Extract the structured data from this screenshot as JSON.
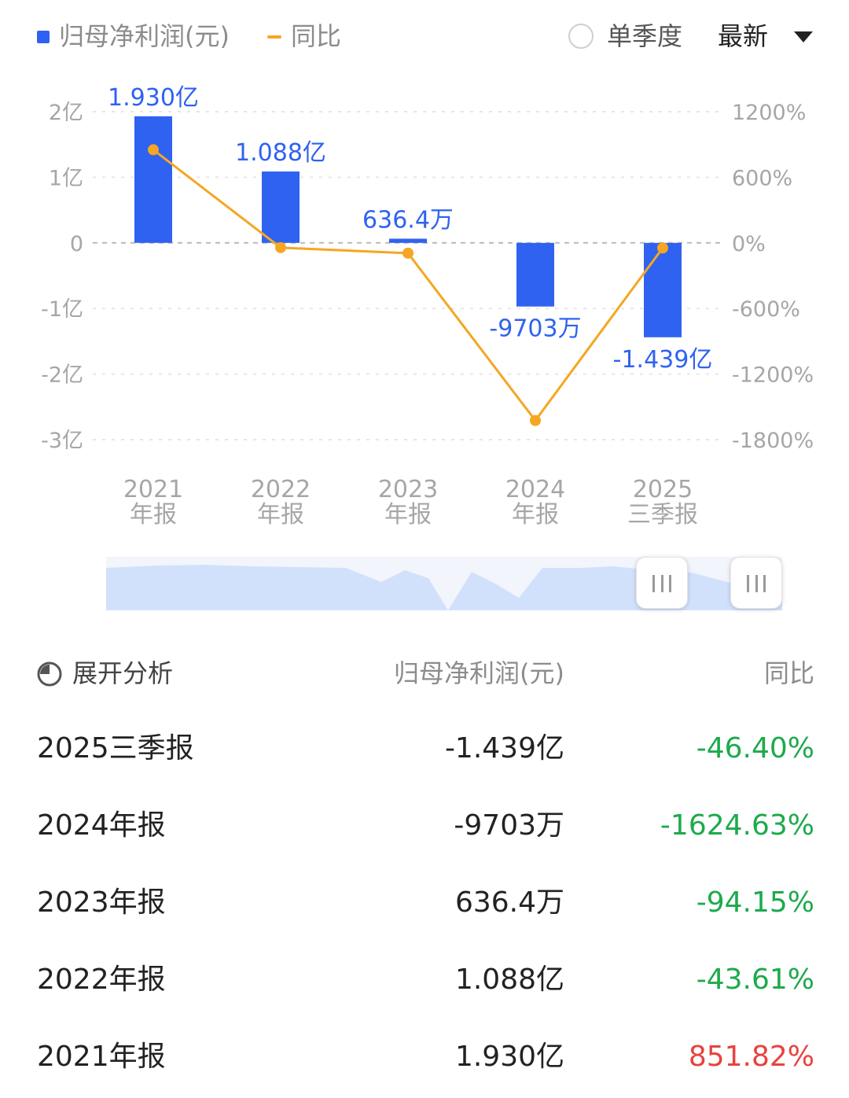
{
  "legend": {
    "series1_label": "归母净利润(元)",
    "series2_label": "同比",
    "toggle_label": "单季度",
    "dropdown_label": "最新"
  },
  "colors": {
    "bar": "#2f62f0",
    "line": "#f5a623",
    "positive": "#e8423f",
    "negative": "#1daa4c"
  },
  "chart_data": {
    "type": "bar",
    "title": "",
    "categories": [
      [
        "2021",
        "年报"
      ],
      [
        "2022",
        "年报"
      ],
      [
        "2023",
        "年报"
      ],
      [
        "2024",
        "年报"
      ],
      [
        "2025",
        "三季报"
      ]
    ],
    "series": [
      {
        "name": "归母净利润(元)",
        "type": "bar",
        "axis": "left",
        "values": [
          193000000,
          108800000,
          6364000,
          -97030000,
          -143900000
        ],
        "data_labels": [
          "1.930亿",
          "1.088亿",
          "636.4万",
          "-9703万",
          "-1.439亿"
        ]
      },
      {
        "name": "同比",
        "type": "line",
        "axis": "right",
        "values": [
          851.82,
          -43.61,
          -94.15,
          -1624.63,
          -46.4
        ]
      }
    ],
    "left_axis": {
      "ylim": [
        -300000000,
        200000000
      ],
      "ticks": [
        200000000,
        100000000,
        0,
        -100000000,
        -200000000,
        -300000000
      ],
      "tick_labels": [
        "2亿",
        "1亿",
        "0",
        "-1亿",
        "-2亿",
        "-3亿"
      ]
    },
    "right_axis": {
      "ylim": [
        -1800,
        1200
      ],
      "ticks": [
        1200,
        600,
        0,
        -600,
        -1200,
        -1800
      ],
      "tick_labels": [
        "1200%",
        "600%",
        "0%",
        "-600%",
        "-1200%",
        "-1800%"
      ]
    },
    "grid": true
  },
  "table": {
    "expand_label": "展开分析",
    "col_value": "归母净利润(元)",
    "col_yoy": "同比",
    "rows": [
      {
        "period": "2025三季报",
        "value": "-1.439亿",
        "yoy": "-46.40%"
      },
      {
        "period": "2024年报",
        "value": "-9703万",
        "yoy": "-1624.63%"
      },
      {
        "period": "2023年报",
        "value": "636.4万",
        "yoy": "-94.15%"
      },
      {
        "period": "2022年报",
        "value": "1.088亿",
        "yoy": "-43.61%"
      },
      {
        "period": "2021年报",
        "value": "1.930亿",
        "yoy": "851.82%"
      }
    ]
  }
}
